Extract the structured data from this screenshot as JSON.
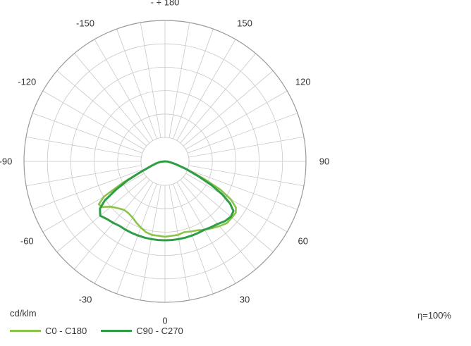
{
  "chart_data": {
    "type": "polar",
    "unit": "cd/klm",
    "efficiency": "η=100%",
    "angle_labels": [
      {
        "angle": 180,
        "text": "- + 180"
      },
      {
        "angle": 150,
        "text": "150"
      },
      {
        "angle": -150,
        "text": "-150"
      },
      {
        "angle": 120,
        "text": "120"
      },
      {
        "angle": -120,
        "text": "-120"
      },
      {
        "angle": 90,
        "text": "90"
      },
      {
        "angle": -90,
        "text": "-90"
      },
      {
        "angle": 60,
        "text": "60"
      },
      {
        "angle": -60,
        "text": "-60"
      },
      {
        "angle": 30,
        "text": "30"
      },
      {
        "angle": -30,
        "text": "-30"
      },
      {
        "angle": 0,
        "text": "0"
      }
    ],
    "series": [
      {
        "name": "C0 - C180",
        "color": "#8BC34A",
        "points": [
          [
            -90,
            0
          ],
          [
            -84,
            0.03
          ],
          [
            -78,
            0.06
          ],
          [
            -72,
            0.1
          ],
          [
            -66,
            0.2
          ],
          [
            -63,
            0.34
          ],
          [
            -60,
            0.5
          ],
          [
            -57,
            0.56
          ],
          [
            -54,
            0.55
          ],
          [
            -50,
            0.5
          ],
          [
            -45,
            0.47
          ],
          [
            -40,
            0.45
          ],
          [
            -35,
            0.45
          ],
          [
            -30,
            0.46
          ],
          [
            -25,
            0.48
          ],
          [
            -20,
            0.5
          ],
          [
            -15,
            0.52
          ],
          [
            -10,
            0.53
          ],
          [
            -5,
            0.53
          ],
          [
            0,
            0.535
          ],
          [
            5,
            0.53
          ],
          [
            10,
            0.53
          ],
          [
            15,
            0.52
          ],
          [
            20,
            0.53
          ],
          [
            25,
            0.54
          ],
          [
            30,
            0.56
          ],
          [
            35,
            0.58
          ],
          [
            40,
            0.6
          ],
          [
            45,
            0.62
          ],
          [
            50,
            0.62
          ],
          [
            54,
            0.62
          ],
          [
            57,
            0.6
          ],
          [
            60,
            0.54
          ],
          [
            63,
            0.44
          ],
          [
            66,
            0.3
          ],
          [
            70,
            0.16
          ],
          [
            75,
            0.08
          ],
          [
            80,
            0.04
          ],
          [
            85,
            0.02
          ],
          [
            90,
            0
          ]
        ]
      },
      {
        "name": "C90 - C270",
        "color": "#2E9E44",
        "points": [
          [
            -90,
            0
          ],
          [
            -84,
            0.03
          ],
          [
            -78,
            0.06
          ],
          [
            -72,
            0.1
          ],
          [
            -66,
            0.2
          ],
          [
            -63,
            0.3
          ],
          [
            -60,
            0.4
          ],
          [
            -57,
            0.51
          ],
          [
            -54,
            0.57
          ],
          [
            -50,
            0.6
          ],
          [
            -45,
            0.58
          ],
          [
            -40,
            0.57
          ],
          [
            -35,
            0.56
          ],
          [
            -30,
            0.56
          ],
          [
            -25,
            0.56
          ],
          [
            -20,
            0.56
          ],
          [
            -15,
            0.56
          ],
          [
            -10,
            0.56
          ],
          [
            -5,
            0.56
          ],
          [
            0,
            0.56
          ],
          [
            5,
            0.56
          ],
          [
            10,
            0.56
          ],
          [
            15,
            0.56
          ],
          [
            20,
            0.56
          ],
          [
            25,
            0.56
          ],
          [
            30,
            0.56
          ],
          [
            35,
            0.57
          ],
          [
            40,
            0.58
          ],
          [
            45,
            0.6
          ],
          [
            50,
            0.61
          ],
          [
            54,
            0.6
          ],
          [
            57,
            0.55
          ],
          [
            60,
            0.47
          ],
          [
            63,
            0.37
          ],
          [
            66,
            0.26
          ],
          [
            70,
            0.16
          ],
          [
            75,
            0.08
          ],
          [
            80,
            0.04
          ],
          [
            85,
            0.02
          ],
          [
            90,
            0
          ]
        ]
      }
    ],
    "radial_grid": "5 rings, no tick values printed",
    "angular_grid_step_deg": 10
  }
}
